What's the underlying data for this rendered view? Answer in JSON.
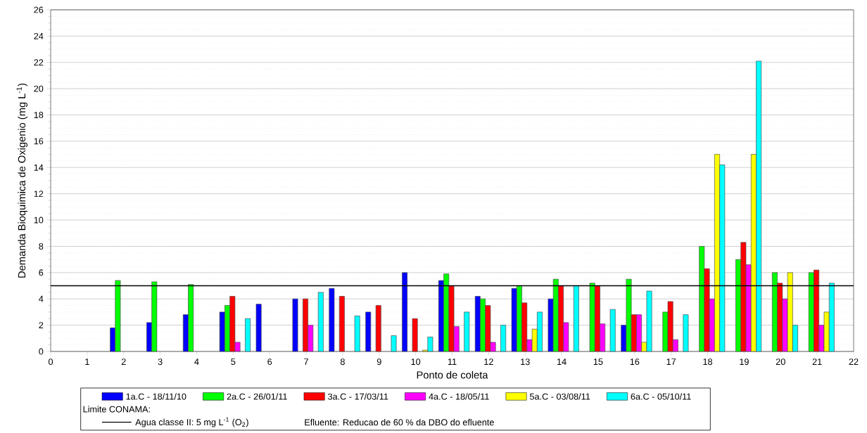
{
  "chart_data": {
    "type": "bar",
    "xlabel": "Ponto de coleta",
    "ylabel": "Demanda  Bioquimica de Oxigenio (mg L$^{-1}$)",
    "x": [
      2,
      3,
      4,
      5,
      6,
      7,
      8,
      9,
      10,
      11,
      12,
      13,
      14,
      15,
      16,
      17,
      18,
      19,
      20,
      21
    ],
    "xlim": [
      0,
      22
    ],
    "xticks": [
      0,
      1,
      2,
      3,
      4,
      5,
      6,
      7,
      8,
      9,
      10,
      11,
      12,
      13,
      14,
      15,
      16,
      17,
      18,
      19,
      20,
      21,
      22
    ],
    "ylim": [
      0,
      26
    ],
    "yticks": [
      0,
      2,
      4,
      6,
      8,
      10,
      12,
      14,
      16,
      18,
      20,
      22,
      24,
      26
    ],
    "grid": "y",
    "legend": "bottom",
    "series": [
      {
        "name": "1a.C - 18/11/10",
        "color": "#0000ff",
        "values": [
          1.8,
          2.2,
          2.8,
          3.0,
          3.6,
          4.0,
          4.8,
          3.0,
          6.0,
          5.4,
          4.2,
          4.8,
          4.0,
          null,
          2.0,
          null,
          null,
          null,
          null,
          null
        ]
      },
      {
        "name": "2a.C - 26/01/11",
        "color": "#00ff00",
        "values": [
          5.4,
          5.3,
          5.1,
          3.5,
          null,
          null,
          null,
          null,
          null,
          5.9,
          4.0,
          5.0,
          5.5,
          5.2,
          5.5,
          3.0,
          8.0,
          7.0,
          6.0,
          6.0
        ]
      },
      {
        "name": "3a.C - 17/03/11",
        "color": "#ff0000",
        "values": [
          null,
          null,
          null,
          4.2,
          null,
          4.0,
          4.2,
          3.5,
          2.5,
          5.0,
          3.5,
          3.7,
          5.0,
          5.0,
          2.8,
          3.8,
          6.3,
          8.3,
          5.2,
          6.2
        ]
      },
      {
        "name": "4a.C - 18/05/11",
        "color": "#ff00ff",
        "values": [
          null,
          null,
          null,
          0.7,
          null,
          2.0,
          null,
          null,
          null,
          1.9,
          0.7,
          0.9,
          2.2,
          2.1,
          2.8,
          0.9,
          4.0,
          6.6,
          4.0,
          2.0
        ]
      },
      {
        "name": "5a.C - 03/08/11",
        "color": "#ffff00",
        "values": [
          null,
          null,
          null,
          null,
          null,
          null,
          null,
          null,
          0.1,
          null,
          null,
          1.7,
          null,
          null,
          0.7,
          null,
          15.0,
          15.0,
          6.0,
          3.0
        ]
      },
      {
        "name": "6a.C - 05/10/11",
        "color": "#00ffff",
        "values": [
          null,
          null,
          null,
          2.5,
          null,
          4.5,
          2.7,
          1.2,
          1.1,
          3.0,
          2.0,
          3.0,
          5.0,
          3.2,
          4.6,
          2.8,
          14.2,
          22.1,
          2.0,
          5.2
        ]
      }
    ],
    "ref_lines": [
      {
        "axis": "y",
        "value": 5,
        "label": "Agua classe II: 5 mg L$^{-1}$ (O$_{2}$)",
        "color": "#000000",
        "line_style": "solid"
      }
    ],
    "annotations": [
      "Limite CONAMA:",
      "Efluente: Reducao de 60 % da  DBO do efluente"
    ]
  }
}
